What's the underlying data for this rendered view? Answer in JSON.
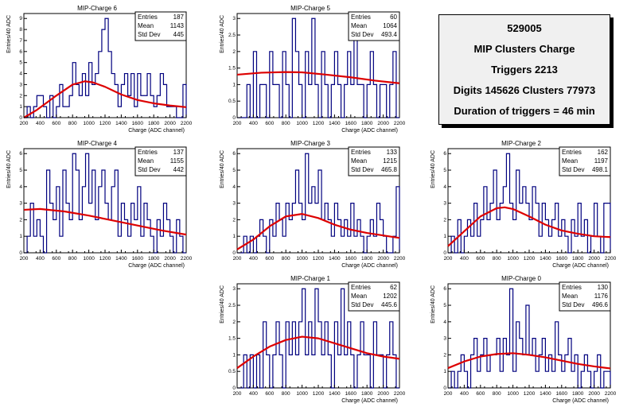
{
  "info": {
    "run": "529005",
    "title": "MIP Clusters Charge",
    "triggers": "Triggers 2213",
    "digits": "Digits 145626 Clusters 77973",
    "duration": "Duration of triggers = 46 min"
  },
  "chart_data": [
    {
      "type": "histogram",
      "title": "MIP-Charge 6",
      "xlabel": "Charge (ADC channel)",
      "ylabel": "Entries/40 ADC",
      "xlim": [
        200,
        2200
      ],
      "ylim": [
        0,
        9.45
      ],
      "xticks": [
        "200",
        "400",
        "600",
        "800",
        "1000",
        "1200",
        "1400",
        "1600",
        "1800",
        "2000",
        "2200"
      ],
      "yticks": [
        "0",
        "1",
        "2",
        "3",
        "4",
        "5",
        "6",
        "7",
        "8",
        "9"
      ],
      "bin_width": 40,
      "counts": [
        0,
        1,
        0,
        1,
        2,
        2,
        1,
        0,
        2,
        0,
        1,
        3,
        1,
        1,
        2,
        5,
        3,
        2,
        4,
        2,
        5,
        3,
        4,
        6,
        8,
        9,
        6,
        4,
        3,
        1,
        3,
        4,
        2,
        4,
        1,
        4,
        2,
        2,
        4,
        2,
        1,
        2,
        4,
        3,
        1,
        1,
        1,
        0,
        0,
        3
      ],
      "fit": [
        [
          200,
          0.0
        ],
        [
          360,
          0.7
        ],
        [
          600,
          2.0
        ],
        [
          800,
          3.0
        ],
        [
          950,
          3.3
        ],
        [
          1050,
          3.2
        ],
        [
          1200,
          2.8
        ],
        [
          1400,
          2.1
        ],
        [
          1600,
          1.6
        ],
        [
          1800,
          1.3
        ],
        [
          2000,
          1.1
        ],
        [
          2200,
          0.95
        ]
      ],
      "stats": {
        "entries_label": "Entries",
        "entries": "187",
        "mean_label": "Mean",
        "mean": "1143",
        "std_label": "Std Dev",
        "std": "445"
      }
    },
    {
      "type": "histogram",
      "title": "MIP-Charge 5",
      "xlabel": "Charge (ADC channel)",
      "ylabel": "Entries/40 ADC",
      "xlim": [
        200,
        2200
      ],
      "ylim": [
        0,
        3.15
      ],
      "xticks": [
        "200",
        "400",
        "600",
        "800",
        "1000",
        "1200",
        "1400",
        "1600",
        "1800",
        "2000",
        "2200"
      ],
      "yticks": [
        "0",
        "0.5",
        "1",
        "1.5",
        "2",
        "2.5",
        "3"
      ],
      "bin_width": 40,
      "counts": [
        0,
        0,
        0,
        1,
        0,
        2,
        0,
        1,
        1,
        0,
        2,
        1,
        1,
        0,
        2,
        1,
        0,
        3,
        2,
        1,
        0,
        2,
        1,
        3,
        1,
        0,
        2,
        1,
        0,
        1,
        2,
        1,
        0,
        1,
        2,
        1,
        3,
        1,
        1,
        0,
        1,
        2,
        1,
        0,
        1,
        1,
        0,
        1,
        2,
        0
      ],
      "fit": [
        [
          200,
          1.3
        ],
        [
          500,
          1.36
        ],
        [
          800,
          1.38
        ],
        [
          1000,
          1.37
        ],
        [
          1300,
          1.3
        ],
        [
          1600,
          1.22
        ],
        [
          1900,
          1.12
        ],
        [
          2200,
          1.04
        ]
      ],
      "stats": {
        "entries_label": "Entries",
        "entries": "60",
        "mean_label": "Mean",
        "mean": "1064",
        "std_label": "Std Dev",
        "std": "493.4"
      }
    },
    {
      "type": "histogram",
      "title": "MIP-Charge 4",
      "xlabel": "Charge (ADC channel)",
      "ylabel": "Entries/40 ADC",
      "xlim": [
        200,
        2200
      ],
      "ylim": [
        0,
        6.3
      ],
      "xticks": [
        "200",
        "400",
        "600",
        "800",
        "1000",
        "1200",
        "1400",
        "1600",
        "1800",
        "2000",
        "2200"
      ],
      "yticks": [
        "0",
        "1",
        "2",
        "3",
        "4",
        "5",
        "6"
      ],
      "bin_width": 40,
      "counts": [
        0,
        1,
        3,
        1,
        2,
        1,
        0,
        5,
        3,
        2,
        4,
        1,
        5,
        3,
        2,
        6,
        5,
        2,
        4,
        6,
        3,
        5,
        2,
        4,
        5,
        3,
        2,
        4,
        5,
        1,
        3,
        2,
        1,
        3,
        2,
        4,
        1,
        3,
        2,
        1,
        0,
        2,
        1,
        3,
        2,
        1,
        0,
        2,
        1,
        0
      ],
      "fit": [
        [
          200,
          2.6
        ],
        [
          400,
          2.65
        ],
        [
          700,
          2.5
        ],
        [
          1000,
          2.25
        ],
        [
          1300,
          1.95
        ],
        [
          1600,
          1.65
        ],
        [
          1900,
          1.35
        ],
        [
          2200,
          1.1
        ]
      ],
      "stats": {
        "entries_label": "Entries",
        "entries": "137",
        "mean_label": "Mean",
        "mean": "1155",
        "std_label": "Std Dev",
        "std": "442"
      }
    },
    {
      "type": "histogram",
      "title": "MIP-Charge 3",
      "xlabel": "Charge (ADC channel)",
      "ylabel": "Entries/40 ADC",
      "xlim": [
        200,
        2200
      ],
      "ylim": [
        0,
        6.3
      ],
      "xticks": [
        "200",
        "400",
        "600",
        "800",
        "1000",
        "1200",
        "1400",
        "1600",
        "1800",
        "2000",
        "2200"
      ],
      "yticks": [
        "0",
        "1",
        "2",
        "3",
        "4",
        "5",
        "6"
      ],
      "bin_width": 40,
      "counts": [
        0,
        0,
        1,
        0,
        1,
        0,
        1,
        2,
        1,
        0,
        2,
        1,
        3,
        2,
        1,
        3,
        2,
        3,
        5,
        3,
        2,
        6,
        3,
        4,
        3,
        5,
        2,
        3,
        2,
        1,
        3,
        2,
        1,
        2,
        1,
        3,
        1,
        2,
        1,
        0,
        1,
        2,
        1,
        3,
        2,
        1,
        0,
        0,
        1,
        4
      ],
      "fit": [
        [
          200,
          0.2
        ],
        [
          400,
          0.8
        ],
        [
          600,
          1.6
        ],
        [
          800,
          2.2
        ],
        [
          1000,
          2.35
        ],
        [
          1200,
          2.1
        ],
        [
          1400,
          1.7
        ],
        [
          1600,
          1.4
        ],
        [
          1800,
          1.2
        ],
        [
          2000,
          1.05
        ],
        [
          2200,
          0.9
        ]
      ],
      "stats": {
        "entries_label": "Entries",
        "entries": "133",
        "mean_label": "Mean",
        "mean": "1215",
        "std_label": "Std Dev",
        "std": "465.8"
      }
    },
    {
      "type": "histogram",
      "title": "MIP-Charge 2",
      "xlabel": "Charge (ADC channel)",
      "ylabel": "Entries/40 ADC",
      "xlim": [
        200,
        2200
      ],
      "ylim": [
        0,
        6.3
      ],
      "xticks": [
        "200",
        "400",
        "600",
        "800",
        "1000",
        "1200",
        "1400",
        "1600",
        "1800",
        "2000",
        "2200"
      ],
      "yticks": [
        "0",
        "1",
        "2",
        "3",
        "4",
        "5",
        "6"
      ],
      "bin_width": 40,
      "counts": [
        0,
        1,
        0,
        2,
        0,
        1,
        2,
        1,
        3,
        1,
        2,
        4,
        2,
        3,
        5,
        2,
        3,
        4,
        6,
        3,
        2,
        5,
        3,
        4,
        3,
        2,
        4,
        3,
        1,
        3,
        2,
        1,
        2,
        3,
        1,
        2,
        1,
        0,
        2,
        1,
        3,
        1,
        2,
        0,
        1,
        3,
        1,
        0,
        3,
        3
      ],
      "fit": [
        [
          200,
          0.4
        ],
        [
          400,
          1.3
        ],
        [
          600,
          2.2
        ],
        [
          800,
          2.7
        ],
        [
          900,
          2.75
        ],
        [
          1000,
          2.65
        ],
        [
          1200,
          2.2
        ],
        [
          1400,
          1.7
        ],
        [
          1600,
          1.35
        ],
        [
          1800,
          1.15
        ],
        [
          2000,
          1.0
        ],
        [
          2200,
          0.95
        ]
      ],
      "stats": {
        "entries_label": "Entries",
        "entries": "162",
        "mean_label": "Mean",
        "mean": "1197",
        "std_label": "Std Dev",
        "std": "498.1"
      }
    },
    {
      "type": "histogram",
      "title": "MIP-Charge 1",
      "xlabel": "Charge (ADC channel)",
      "ylabel": "Entries/40 ADC",
      "xlim": [
        200,
        2200
      ],
      "ylim": [
        0,
        3.15
      ],
      "xticks": [
        "200",
        "400",
        "600",
        "800",
        "1000",
        "1200",
        "1400",
        "1600",
        "1800",
        "2000",
        "2200"
      ],
      "yticks": [
        "0",
        "0.5",
        "1",
        "1.5",
        "2",
        "2.5",
        "3"
      ],
      "bin_width": 40,
      "counts": [
        0,
        0,
        1,
        0,
        1,
        0,
        1,
        0,
        2,
        1,
        0,
        1,
        2,
        1,
        0,
        2,
        1,
        2,
        1,
        2,
        3,
        1,
        2,
        1,
        3,
        2,
        1,
        2,
        1,
        0,
        2,
        1,
        3,
        1,
        2,
        1,
        0,
        1,
        2,
        1,
        1,
        0,
        2,
        1,
        1,
        0,
        1,
        2,
        1,
        0
      ],
      "fit": [
        [
          200,
          0.6
        ],
        [
          400,
          0.95
        ],
        [
          600,
          1.25
        ],
        [
          800,
          1.45
        ],
        [
          1000,
          1.55
        ],
        [
          1200,
          1.5
        ],
        [
          1400,
          1.35
        ],
        [
          1600,
          1.2
        ],
        [
          1800,
          1.05
        ],
        [
          2000,
          0.95
        ],
        [
          2200,
          0.88
        ]
      ],
      "stats": {
        "entries_label": "Entries",
        "entries": "62",
        "mean_label": "Mean",
        "mean": "1202",
        "std_label": "Std Dev",
        "std": "445.6"
      }
    },
    {
      "type": "histogram",
      "title": "MIP-Charge 0",
      "xlabel": "Charge (ADC channel)",
      "ylabel": "Entries/40 ADC",
      "xlim": [
        200,
        2200
      ],
      "ylim": [
        0,
        6.3
      ],
      "xticks": [
        "200",
        "400",
        "600",
        "800",
        "1000",
        "1200",
        "1400",
        "1600",
        "1800",
        "2000",
        "2200"
      ],
      "yticks": [
        "0",
        "1",
        "2",
        "3",
        "4",
        "5",
        "6"
      ],
      "bin_width": 40,
      "counts": [
        0,
        1,
        0,
        1,
        2,
        1,
        0,
        2,
        3,
        1,
        2,
        3,
        1,
        2,
        2,
        3,
        1,
        3,
        2,
        6,
        1,
        4,
        3,
        2,
        5,
        2,
        3,
        1,
        2,
        3,
        1,
        2,
        1,
        4,
        2,
        1,
        2,
        3,
        1,
        2,
        0,
        1,
        2,
        1,
        0,
        1,
        2,
        0,
        1,
        1
      ],
      "fit": [
        [
          200,
          1.2
        ],
        [
          400,
          1.6
        ],
        [
          600,
          1.9
        ],
        [
          800,
          2.05
        ],
        [
          1000,
          2.1
        ],
        [
          1200,
          2.0
        ],
        [
          1400,
          1.85
        ],
        [
          1600,
          1.65
        ],
        [
          1800,
          1.45
        ],
        [
          2000,
          1.3
        ],
        [
          2200,
          1.18
        ]
      ],
      "stats": {
        "entries_label": "Entries",
        "entries": "130",
        "mean_label": "Mean",
        "mean": "1176",
        "std_label": "Std Dev",
        "std": "496.6"
      }
    }
  ],
  "colors": {
    "hist": "#00007f",
    "fit": "#dd0000",
    "axis": "#000000"
  }
}
